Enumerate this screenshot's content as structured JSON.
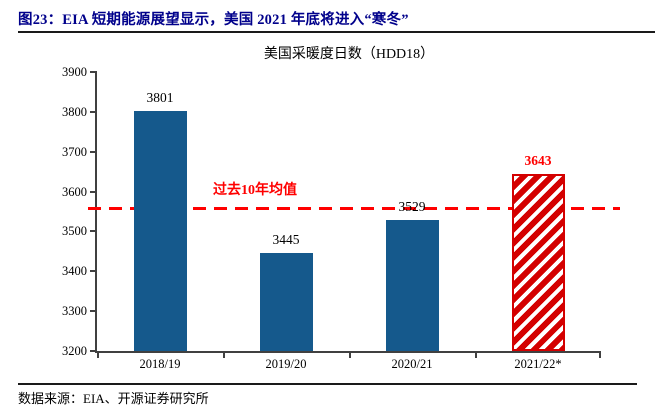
{
  "header": {
    "title": "图23：EIA 短期能源展望显示，美国 2021 年底将进入“寒冬”"
  },
  "footer": {
    "source": "数据来源：EIA、开源证券研究所"
  },
  "chart_data": {
    "type": "bar",
    "title": "美国采暖度日数（HDD18）",
    "categories": [
      "2018/19",
      "2019/20",
      "2020/21",
      "2021/22*"
    ],
    "values": [
      3801,
      3445,
      3529,
      3643
    ],
    "bar_styles": [
      "solid",
      "solid",
      "solid",
      "hatched"
    ],
    "value_label_colors": [
      "#000000",
      "#000000",
      "#000000",
      "#ff0000"
    ],
    "bar_color": "#15598c",
    "hatch_color": "#d40000",
    "ylim": [
      3200,
      3900
    ],
    "ytick_step": 100,
    "grid": false,
    "reference_line": {
      "value": 3557,
      "label": "过去10年均值",
      "color": "#ff0000",
      "style": "dashed"
    }
  }
}
